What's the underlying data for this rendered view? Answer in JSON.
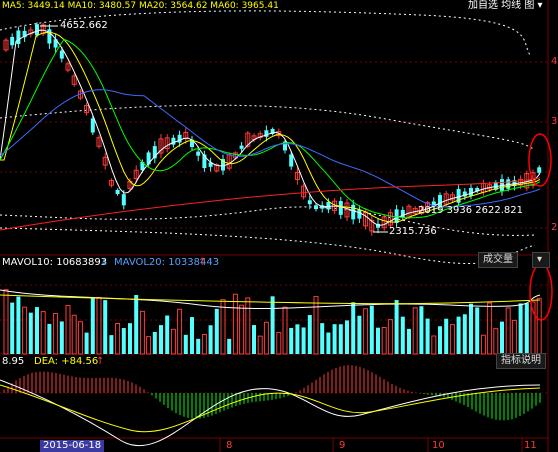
{
  "header": {
    "ma_line": "MA5: 3449.14  MA10: 3480.57  MA20: 3564.62  MA60: 3965.41",
    "right_label": "加自选  均线  图  ▾"
  },
  "price_panel": {
    "high_label": "4652.662",
    "low_label": "2315.736",
    "mid_label": "2019  3936  2622.821",
    "axis_ticks": [
      "4",
      "3",
      "2"
    ]
  },
  "volume_panel": {
    "mavol10_label": "MAVOL10: 10683893",
    "mavol20_label": "MAVOL20: 10338443",
    "button": "成交量"
  },
  "macd_panel": {
    "diff_label": "8.95",
    "dea_label": "DEA: +84.56",
    "button": "指标说明"
  },
  "time_axis": {
    "date_label": "2015-06-18",
    "months": [
      "8",
      "9",
      "10",
      "11"
    ]
  },
  "colors": {
    "up": "#ff3b3b",
    "down": "#54ffff",
    "ma_white": "#ffffff",
    "ma_yellow": "#ffff00",
    "ma_green": "#00ff00",
    "ma_blue": "#3d6bff",
    "ma_red": "#ff2020",
    "grid": "#7a0000",
    "highlight": "#ff0000"
  }
}
